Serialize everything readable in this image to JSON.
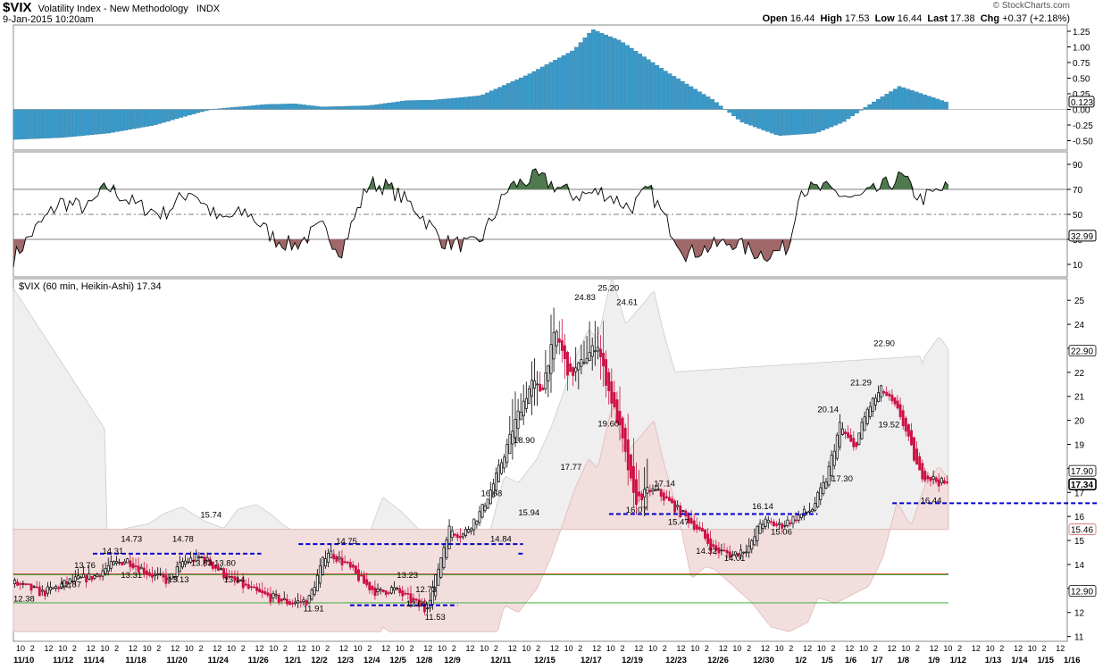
{
  "header": {
    "symbol": "$VIX",
    "name": "Volatility Index - New Methodology",
    "exchange": "INDX",
    "datetime": "9-Jan-2015 10:20am",
    "brand": "© StockCharts.com",
    "stats_labels": [
      "Open",
      "High",
      "Low",
      "Last",
      "Chg"
    ],
    "stats_values": [
      "16.44",
      "17.53",
      "16.44",
      "17.38",
      "+0.37 (+2.18%)"
    ]
  },
  "colors": {
    "histogram": "#3a9ac9",
    "bullish": "#000000",
    "bearish": "#cc1144",
    "support_line": "#0000cc",
    "rsi_high_fill": "#4e7a4e",
    "rsi_low_fill": "#a06868",
    "bb_upper_fill": "#efefef",
    "bb_lower_fill": "#f3dede"
  },
  "chart_data": [
    {
      "type": "bar",
      "panel": "momentum-histogram",
      "ylim": [
        -0.65,
        1.35
      ],
      "y_ticks": [
        "1.25",
        "1.00",
        "0.75",
        "0.50",
        "0.25",
        "0.00",
        "-0.25",
        "-0.50"
      ],
      "last_value": "0.123",
      "series_anchors": {
        "x": [
          0,
          0.05,
          0.1,
          0.15,
          0.18,
          0.21,
          0.27,
          0.3,
          0.33,
          0.38,
          0.42,
          0.45,
          0.5,
          0.55,
          0.6,
          0.62,
          0.65,
          0.7,
          0.75,
          0.78,
          0.82,
          0.86,
          0.89,
          0.92,
          0.95,
          1.0
        ],
        "y": [
          -0.48,
          -0.45,
          -0.38,
          -0.25,
          -0.12,
          0.0,
          0.08,
          0.09,
          0.04,
          0.06,
          0.14,
          0.15,
          0.22,
          0.55,
          0.95,
          1.28,
          1.1,
          0.6,
          0.15,
          -0.2,
          -0.42,
          -0.38,
          -0.2,
          0.1,
          0.37,
          0.12
        ]
      }
    },
    {
      "type": "line",
      "panel": "rsi",
      "ylim": [
        0,
        100
      ],
      "y_ticks": [
        "90",
        "70",
        "50",
        "30",
        "10"
      ],
      "levels": [
        70,
        50,
        30
      ],
      "last_value": "32.99",
      "series_anchors": {
        "x": [
          0,
          0.02,
          0.05,
          0.08,
          0.1,
          0.13,
          0.16,
          0.19,
          0.22,
          0.25,
          0.28,
          0.3,
          0.33,
          0.35,
          0.38,
          0.4,
          0.43,
          0.46,
          0.49,
          0.5,
          0.53,
          0.56,
          0.6,
          0.63,
          0.66,
          0.68,
          0.7,
          0.72,
          0.75,
          0.77,
          0.79,
          0.81,
          0.83,
          0.84,
          0.87,
          0.9,
          0.92,
          0.95,
          0.97,
          1.0
        ],
        "y": [
          15,
          35,
          60,
          55,
          72,
          58,
          50,
          70,
          45,
          52,
          30,
          25,
          40,
          20,
          75,
          72,
          55,
          28,
          25,
          30,
          72,
          80,
          65,
          68,
          55,
          70,
          42,
          18,
          25,
          28,
          20,
          18,
          25,
          70,
          70,
          62,
          68,
          80,
          62,
          72
        ]
      }
    },
    {
      "type": "candlestick",
      "panel": "price",
      "title": "$VIX (60 min, Heikin-Ashi) 17.34",
      "ylim": [
        10.8,
        25.9
      ],
      "y_ticks": [
        "25",
        "24",
        "23",
        "22",
        "21",
        "20",
        "19",
        "18",
        "17",
        "16",
        "15",
        "14",
        "13",
        "12",
        "11"
      ],
      "right_labels": [
        "22.90",
        "17.90",
        "17.34",
        "15.46",
        "12.90"
      ],
      "x_date_labels": [
        "11/10",
        "11/12",
        "11/14",
        "11/18",
        "11/20",
        "11/24",
        "11/26",
        "12/1",
        "12/2",
        "12/3",
        "12/4",
        "12/5",
        "12/8",
        "12/9",
        "12/11",
        "12/15",
        "12/17",
        "12/19",
        "12/23",
        "12/26",
        "12/30",
        "1/2",
        "1/5",
        "1/6",
        "1/7",
        "1/8",
        "1/9",
        "1/12",
        "1/13",
        "1/14",
        "1/15",
        "1/16"
      ],
      "x_hour_labels": [
        "10",
        "2",
        "12",
        "10",
        "2",
        "12",
        "10",
        "2",
        "12",
        "10",
        "2",
        "12",
        "10",
        "2",
        "12",
        "10",
        "2",
        "12",
        "10",
        "2",
        "12",
        "10",
        "2",
        "12",
        "10",
        "2",
        "12",
        "10",
        "2",
        "12",
        "10",
        "2",
        "12",
        "10",
        "2",
        "12",
        "10",
        "2",
        "12",
        "10",
        "2",
        "12",
        "10",
        "2",
        "12",
        "10",
        "2",
        "12",
        "10",
        "2",
        "12",
        "10",
        "2",
        "12",
        "10",
        "2",
        "12",
        "10",
        "2",
        "12",
        "10",
        "2",
        "12",
        "10",
        "2",
        "12",
        "10",
        "2",
        "12",
        "10",
        "2",
        "12",
        "10",
        "2",
        "12"
      ],
      "price_labels": [
        "12.38",
        "12.87",
        "13.76",
        "14.31",
        "14.73",
        "13.31",
        "13.13",
        "14.78",
        "13.83",
        "15.74",
        "13.80",
        "13.14",
        "11.91",
        "14.75",
        "13.23",
        "12.73",
        "12.09",
        "11.53",
        "14.84",
        "16.68",
        "15.94",
        "18.90",
        "17.77",
        "24.83",
        "25.20",
        "24.61",
        "19.60",
        "16.07",
        "17.14",
        "15.47",
        "14.32",
        "14.01",
        "16.14",
        "15.06",
        "20.14",
        "17.30",
        "21.29",
        "22.90",
        "19.52",
        "16.44"
      ],
      "price_anchors": {
        "x": [
          0,
          0.03,
          0.06,
          0.085,
          0.1,
          0.12,
          0.145,
          0.165,
          0.18,
          0.2,
          0.215,
          0.23,
          0.26,
          0.295,
          0.315,
          0.335,
          0.355,
          0.375,
          0.39,
          0.405,
          0.425,
          0.44,
          0.45,
          0.465,
          0.48,
          0.5,
          0.515,
          0.525,
          0.54,
          0.555,
          0.565,
          0.58,
          0.595,
          0.61,
          0.625,
          0.635,
          0.65,
          0.665,
          0.68,
          0.69,
          0.71,
          0.73,
          0.75,
          0.77,
          0.79,
          0.8,
          0.82,
          0.84,
          0.855,
          0.87,
          0.885,
          0.9,
          0.915,
          0.93,
          0.95,
          0.97,
          1.0
        ],
        "y": [
          13.2,
          12.8,
          13.3,
          13.5,
          13.9,
          14.2,
          13.6,
          13.3,
          14.1,
          14.3,
          13.9,
          13.4,
          12.8,
          12.4,
          12.5,
          14.6,
          14.0,
          13.2,
          12.8,
          13.0,
          12.5,
          12.1,
          13.2,
          15.5,
          15.2,
          16.2,
          17.5,
          18.6,
          20.3,
          21.6,
          21.2,
          23.8,
          21.8,
          22.5,
          23.2,
          21.5,
          19.5,
          16.6,
          17.1,
          17.0,
          16.3,
          15.6,
          14.6,
          14.4,
          14.8,
          15.8,
          15.6,
          16.0,
          16.3,
          17.5,
          19.8,
          18.8,
          20.5,
          21.3,
          20.2,
          17.8,
          17.3
        ]
      },
      "support_levels": [
        {
          "from": 0.085,
          "to": 0.265,
          "y": 14.45
        },
        {
          "from": 0.305,
          "to": 0.545,
          "y": 14.85
        },
        {
          "from": 0.54,
          "to": 0.545,
          "y": 14.45
        },
        {
          "from": 0.36,
          "to": 0.475,
          "y": 12.3
        },
        {
          "from": 0.637,
          "to": 0.86,
          "y": 16.1
        },
        {
          "from": 0.94,
          "to": 1.16,
          "y": 16.55
        }
      ],
      "horizontal_levels": [
        {
          "y": 13.6,
          "color": "#cc2222"
        },
        {
          "y": 13.6,
          "color": "#22aa22"
        },
        {
          "y": 12.4,
          "color": "#22aa22"
        }
      ]
    }
  ]
}
